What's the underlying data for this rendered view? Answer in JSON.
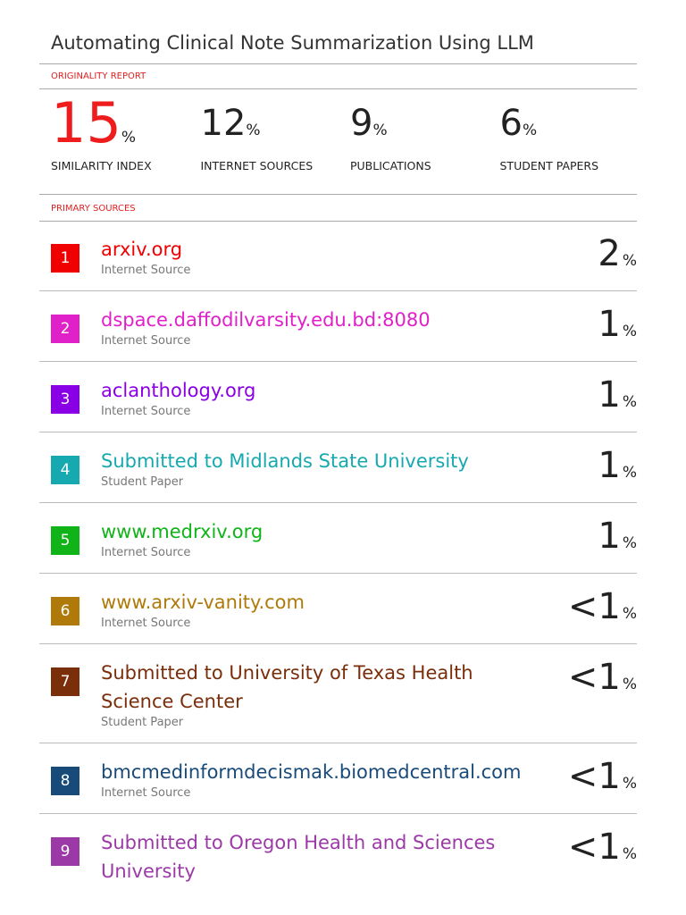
{
  "header": {
    "title": "Automating Clinical Note Summarization Using LLM",
    "report_label": "ORIGINALITY REPORT"
  },
  "scores": [
    {
      "value": "15",
      "unit": "%",
      "label": "SIMILARITY INDEX"
    },
    {
      "value": "12",
      "unit": "%",
      "label": "INTERNET SOURCES"
    },
    {
      "value": "9",
      "unit": "%",
      "label": "PUBLICATIONS"
    },
    {
      "value": "6",
      "unit": "%",
      "label": "STUDENT PAPERS"
    }
  ],
  "sources_label": "PRIMARY SOURCES",
  "sources": [
    {
      "rank": "1",
      "name": "arxiv.org",
      "kind": "Internet Source",
      "value": "2",
      "unit": "%",
      "color": "#f00000"
    },
    {
      "rank": "2",
      "name": "dspace.daffodilvarsity.edu.bd:8080",
      "kind": "Internet Source",
      "value": "1",
      "unit": "%",
      "color": "#e020c8"
    },
    {
      "rank": "3",
      "name": "aclanthology.org",
      "kind": "Internet Source",
      "value": "1",
      "unit": "%",
      "color": "#8a00e6"
    },
    {
      "rank": "4",
      "name": "Submitted to Midlands State University",
      "kind": "Student Paper",
      "value": "1",
      "unit": "%",
      "color": "#16a9b0"
    },
    {
      "rank": "5",
      "name": "www.medrxiv.org",
      "kind": "Internet Source",
      "value": "1",
      "unit": "%",
      "color": "#10b418"
    },
    {
      "rank": "6",
      "name": "www.arxiv-vanity.com",
      "kind": "Internet Source",
      "value": "<1",
      "unit": "%",
      "color": "#b07a0a"
    },
    {
      "rank": "7",
      "name": "Submitted to University of Texas Health Science Center",
      "kind": "Student Paper",
      "value": "<1",
      "unit": "%",
      "color": "#7a2e0a"
    },
    {
      "rank": "8",
      "name": "bmcmedinformdecismak.biomedcentral.com",
      "kind": "Internet Source",
      "value": "<1",
      "unit": "%",
      "color": "#184a7a"
    },
    {
      "rank": "9",
      "name": "Submitted to Oregon Health and Sciences University",
      "kind": "",
      "value": "<1",
      "unit": "%",
      "color": "#9b3aa6"
    }
  ]
}
